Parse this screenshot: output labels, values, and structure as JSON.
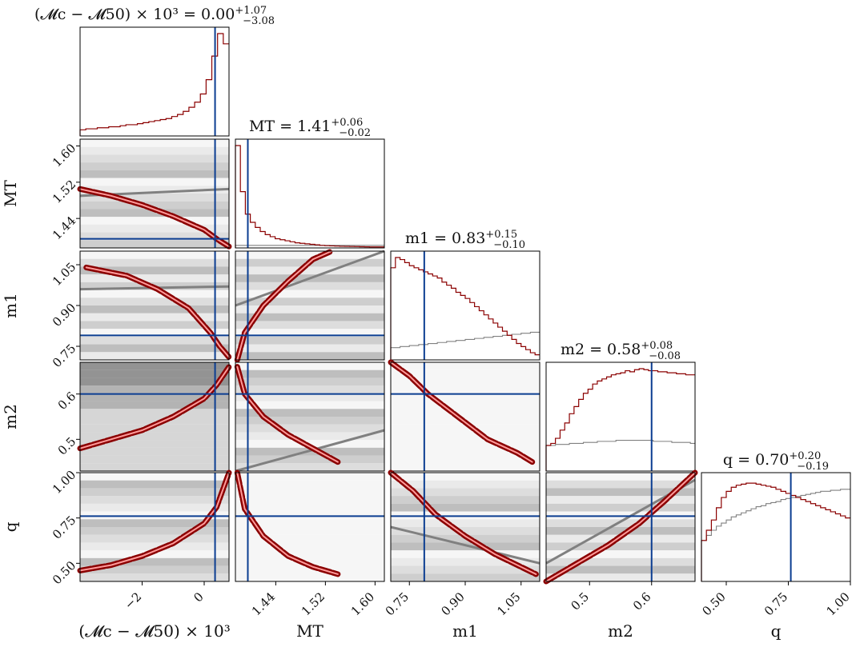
{
  "chart_data": {
    "type": "corner",
    "parameters": [
      {
        "key": "dMc",
        "axis_label": "(𝓜c − 𝓜50) × 10³",
        "title_main": "(𝓜c − 𝓜50) × 10³ = 0.00",
        "title_plus": "+1.07",
        "title_minus": "−3.08",
        "range": [
          -4.0,
          0.8
        ],
        "ticks": [
          -2,
          0
        ],
        "tick_labels": [
          "−2",
          "0"
        ],
        "truth": 0.35
      },
      {
        "key": "MT",
        "axis_label": "MT",
        "title_main": "MT = 1.41",
        "title_plus": "+0.06",
        "title_minus": "−0.02",
        "range": [
          1.375,
          1.615
        ],
        "ticks": [
          1.44,
          1.52,
          1.6
        ],
        "tick_labels": [
          "1.44",
          "1.52",
          "1.60"
        ],
        "truth": 1.395
      },
      {
        "key": "m1",
        "axis_label": "m1",
        "title_main": "m1 = 0.83",
        "title_plus": "+0.15",
        "title_minus": "−0.10",
        "range": [
          0.7,
          1.1
        ],
        "ticks": [
          0.75,
          0.9,
          1.05
        ],
        "tick_labels": [
          "0.75",
          "0.90",
          "1.05"
        ],
        "truth": 0.79
      },
      {
        "key": "m2",
        "axis_label": "m2",
        "title_main": "m2 = 0.58",
        "title_plus": "+0.08",
        "title_minus": "−0.08",
        "range": [
          0.43,
          0.67
        ],
        "ticks": [
          0.5,
          0.6
        ],
        "tick_labels": [
          "0.5",
          "0.6"
        ],
        "truth": 0.6
      },
      {
        "key": "q",
        "axis_label": "q",
        "title_main": "q = 0.70",
        "title_plus": "+0.20",
        "title_minus": "−0.19",
        "range": [
          0.4,
          1.0
        ],
        "ticks": [
          0.5,
          0.75,
          1.0
        ],
        "tick_labels": [
          "0.50",
          "0.75",
          "1.00"
        ],
        "truth": 0.76
      }
    ],
    "y_axis_labels": [
      "MT",
      "m1",
      "m2",
      "q"
    ],
    "colors": {
      "posterior": "#8b0000",
      "prior": "#808080",
      "truth": "#0b3d91",
      "contour_fill": "#ff9a9a"
    },
    "histograms": {
      "dMc": {
        "posterior": [
          0.06,
          0.07,
          0.07,
          0.08,
          0.08,
          0.09,
          0.09,
          0.1,
          0.11,
          0.11,
          0.12,
          0.13,
          0.14,
          0.15,
          0.16,
          0.17,
          0.19,
          0.21,
          0.24,
          0.28,
          0.33,
          0.41,
          0.55,
          0.78,
          1.0,
          0.9
        ]
      },
      "MT": {
        "posterior": [
          1.0,
          0.55,
          0.33,
          0.25,
          0.2,
          0.16,
          0.13,
          0.11,
          0.09,
          0.08,
          0.07,
          0.06,
          0.05,
          0.045,
          0.04,
          0.035,
          0.03,
          0.025,
          0.022,
          0.02,
          0.018,
          0.016,
          0.015,
          0.014,
          0.013,
          0.012,
          0.011,
          0.01,
          0.01,
          0.01
        ],
        "prior": [
          0.025,
          0.025,
          0.025,
          0.025,
          0.025,
          0.025,
          0.025,
          0.025,
          0.025,
          0.025,
          0.025,
          0.025,
          0.025,
          0.025,
          0.025,
          0.025,
          0.025,
          0.025,
          0.025,
          0.025,
          0.025,
          0.025,
          0.025,
          0.025,
          0.025,
          0.025,
          0.025,
          0.025,
          0.025,
          0.025
        ]
      },
      "m1": {
        "posterior": [
          0.9,
          1.0,
          0.98,
          0.95,
          0.92,
          0.9,
          0.88,
          0.86,
          0.84,
          0.82,
          0.8,
          0.76,
          0.73,
          0.7,
          0.66,
          0.63,
          0.6,
          0.56,
          0.52,
          0.48,
          0.44,
          0.4,
          0.36,
          0.32,
          0.28,
          0.24,
          0.2,
          0.16,
          0.13,
          0.1,
          0.07,
          0.05
        ],
        "prior": [
          0.12,
          0.12,
          0.13,
          0.13,
          0.14,
          0.14,
          0.15,
          0.15,
          0.16,
          0.16,
          0.17,
          0.17,
          0.18,
          0.18,
          0.19,
          0.19,
          0.2,
          0.2,
          0.21,
          0.21,
          0.22,
          0.22,
          0.23,
          0.23,
          0.24,
          0.24,
          0.25,
          0.25,
          0.26,
          0.26,
          0.27,
          0.27
        ]
      },
      "m2": {
        "posterior": [
          0.25,
          0.27,
          0.32,
          0.4,
          0.47,
          0.56,
          0.63,
          0.7,
          0.76,
          0.8,
          0.85,
          0.88,
          0.9,
          0.92,
          0.94,
          0.95,
          0.96,
          0.98,
          0.97,
          0.99,
          1.0,
          0.99,
          0.98,
          0.98,
          0.97,
          0.97,
          0.96,
          0.96,
          0.95,
          0.95,
          0.94,
          0.94
        ],
        "prior": [
          0.25,
          0.25,
          0.26,
          0.26,
          0.26,
          0.27,
          0.27,
          0.27,
          0.28,
          0.28,
          0.28,
          0.29,
          0.29,
          0.29,
          0.29,
          0.3,
          0.3,
          0.3,
          0.3,
          0.3,
          0.3,
          0.3,
          0.3,
          0.29,
          0.29,
          0.29,
          0.29,
          0.28,
          0.28,
          0.28,
          0.28,
          0.27
        ]
      },
      "q": {
        "posterior": [
          0.4,
          0.5,
          0.6,
          0.72,
          0.82,
          0.88,
          0.92,
          0.94,
          0.95,
          0.96,
          0.96,
          0.95,
          0.94,
          0.93,
          0.92,
          0.9,
          0.88,
          0.86,
          0.84,
          0.82,
          0.8,
          0.78,
          0.76,
          0.74,
          0.72,
          0.7,
          0.68,
          0.66,
          0.64,
          0.62
        ],
        "prior": [
          0.4,
          0.45,
          0.5,
          0.54,
          0.57,
          0.6,
          0.63,
          0.65,
          0.67,
          0.69,
          0.71,
          0.73,
          0.74,
          0.76,
          0.77,
          0.78,
          0.8,
          0.81,
          0.82,
          0.83,
          0.84,
          0.85,
          0.86,
          0.87,
          0.88,
          0.88,
          0.89,
          0.89,
          0.9,
          0.9
        ]
      }
    },
    "ridges": {
      "1_0": [
        [
          -4.0,
          1.505
        ],
        [
          -3.0,
          1.49
        ],
        [
          -2.0,
          1.47
        ],
        [
          -1.0,
          1.445
        ],
        [
          0.0,
          1.415
        ],
        [
          0.4,
          1.395
        ],
        [
          0.8,
          1.378
        ]
      ],
      "2_0": [
        [
          -3.8,
          1.04
        ],
        [
          -2.5,
          1.01
        ],
        [
          -1.5,
          0.96
        ],
        [
          -0.5,
          0.89
        ],
        [
          0.2,
          0.8
        ],
        [
          0.5,
          0.75
        ],
        [
          0.8,
          0.71
        ]
      ],
      "2_1": [
        [
          1.378,
          0.7
        ],
        [
          1.39,
          0.8
        ],
        [
          1.42,
          0.9
        ],
        [
          1.46,
          0.99
        ],
        [
          1.5,
          1.07
        ],
        [
          1.53,
          1.1
        ]
      ],
      "3_0": [
        [
          -4.0,
          0.48
        ],
        [
          -3.0,
          0.5
        ],
        [
          -2.0,
          0.52
        ],
        [
          -1.0,
          0.55
        ],
        [
          0.0,
          0.59
        ],
        [
          0.4,
          0.62
        ],
        [
          0.8,
          0.66
        ]
      ],
      "3_1": [
        [
          1.378,
          0.66
        ],
        [
          1.39,
          0.6
        ],
        [
          1.42,
          0.55
        ],
        [
          1.46,
          0.51
        ],
        [
          1.5,
          0.48
        ],
        [
          1.54,
          0.45
        ]
      ],
      "3_2": [
        [
          0.7,
          0.67
        ],
        [
          0.75,
          0.64
        ],
        [
          0.8,
          0.6
        ],
        [
          0.88,
          0.55
        ],
        [
          0.96,
          0.5
        ],
        [
          1.04,
          0.47
        ],
        [
          1.08,
          0.45
        ]
      ],
      "4_0": [
        [
          -4.0,
          0.46
        ],
        [
          -3.0,
          0.49
        ],
        [
          -2.0,
          0.54
        ],
        [
          -1.0,
          0.61
        ],
        [
          0.0,
          0.72
        ],
        [
          0.4,
          0.81
        ],
        [
          0.8,
          1.0
        ]
      ],
      "4_1": [
        [
          1.378,
          1.0
        ],
        [
          1.39,
          0.8
        ],
        [
          1.42,
          0.65
        ],
        [
          1.46,
          0.54
        ],
        [
          1.5,
          0.48
        ],
        [
          1.54,
          0.44
        ]
      ],
      "4_2": [
        [
          0.7,
          1.0
        ],
        [
          0.76,
          0.9
        ],
        [
          0.82,
          0.77
        ],
        [
          0.9,
          0.65
        ],
        [
          0.98,
          0.55
        ],
        [
          1.05,
          0.48
        ],
        [
          1.09,
          0.44
        ]
      ],
      "4_3": [
        [
          0.43,
          0.4
        ],
        [
          0.48,
          0.5
        ],
        [
          0.53,
          0.6
        ],
        [
          0.58,
          0.72
        ],
        [
          0.62,
          0.84
        ],
        [
          0.67,
          1.0
        ]
      ]
    },
    "prior_lines": {
      "1_0": [
        [
          -4.0,
          1.49
        ],
        [
          0.8,
          1.505
        ]
      ],
      "2_0": [
        [
          -4.0,
          0.96
        ],
        [
          0.8,
          0.97
        ]
      ],
      "2_1": [
        [
          1.375,
          0.9
        ],
        [
          1.615,
          1.1
        ]
      ],
      "3_1": [
        [
          1.375,
          0.43
        ],
        [
          1.615,
          0.52
        ]
      ],
      "4_2": [
        [
          0.7,
          0.7
        ],
        [
          1.1,
          0.5
        ]
      ],
      "4_3": [
        [
          0.43,
          0.5
        ],
        [
          0.67,
          0.96
        ]
      ]
    }
  }
}
